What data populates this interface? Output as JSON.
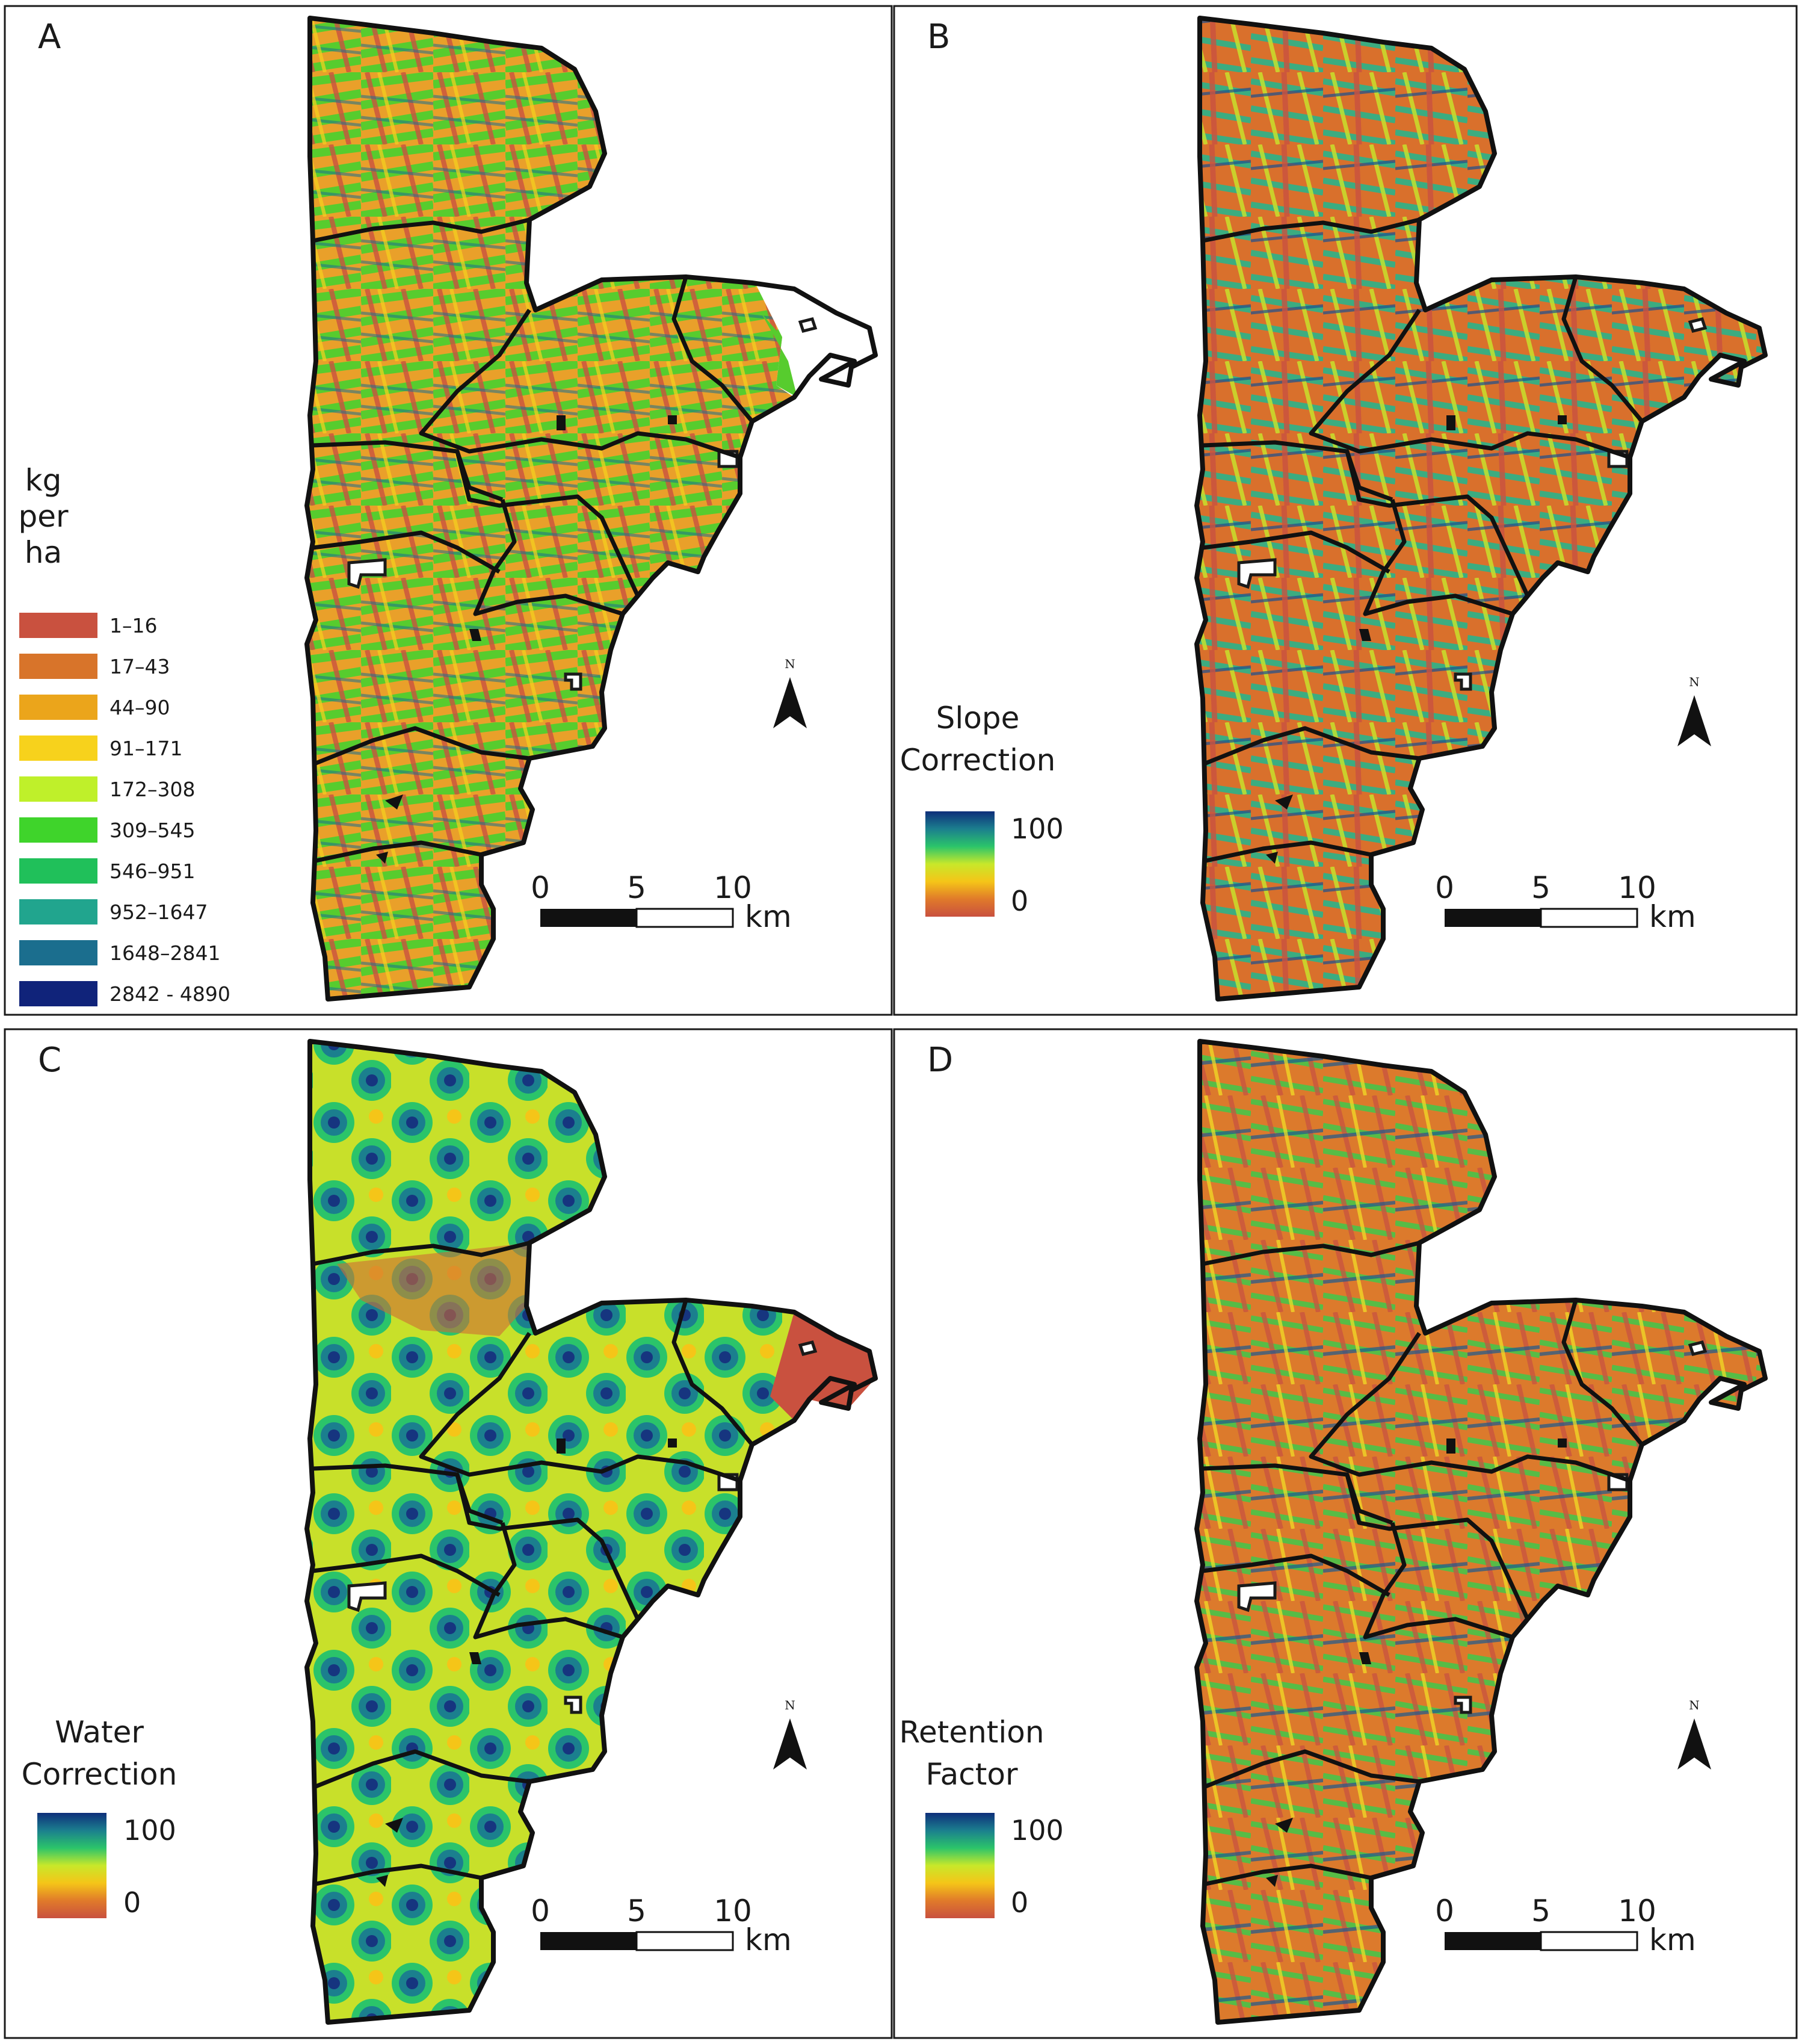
{
  "panels": [
    {
      "letter": "A"
    },
    {
      "letter": "B"
    },
    {
      "letter": "C"
    },
    {
      "letter": "D"
    }
  ],
  "legend_a": {
    "title_lines": [
      "kg",
      "per",
      "ha"
    ],
    "classes": [
      {
        "label": "1–16",
        "color": "#c9513f"
      },
      {
        "label": "17–43",
        "color": "#d8742a"
      },
      {
        "label": "44–90",
        "color": "#eba51b"
      },
      {
        "label": "91–171",
        "color": "#f7d21c"
      },
      {
        "label": "172–308",
        "color": "#bff02a"
      },
      {
        "label": "309–545",
        "color": "#3fd42b"
      },
      {
        "label": "546–951",
        "color": "#20c05a"
      },
      {
        "label": "952–1647",
        "color": "#21a58e"
      },
      {
        "label": "1648–2841",
        "color": "#1b6e8e"
      },
      {
        "label": "2842 - 4890",
        "color": "#10237a"
      }
    ]
  },
  "gradient_legends": {
    "B": {
      "title_lines": [
        "Slope",
        "Correction"
      ],
      "max": "100",
      "min": "0"
    },
    "C": {
      "title_lines": [
        "Water",
        "Correction"
      ],
      "max": "100",
      "min": "0"
    },
    "D": {
      "title_lines": [
        "Retention",
        "Factor"
      ],
      "max": "100",
      "min": "0"
    }
  },
  "gradient_colors": [
    "#0e2f7a",
    "#1b7f8e",
    "#2bc46a",
    "#c8e82a",
    "#f5c518",
    "#e07a2a",
    "#c9513f"
  ],
  "scale_bar": {
    "ticks": [
      "0",
      "5",
      "10"
    ],
    "unit": "km"
  },
  "north_label": "N"
}
